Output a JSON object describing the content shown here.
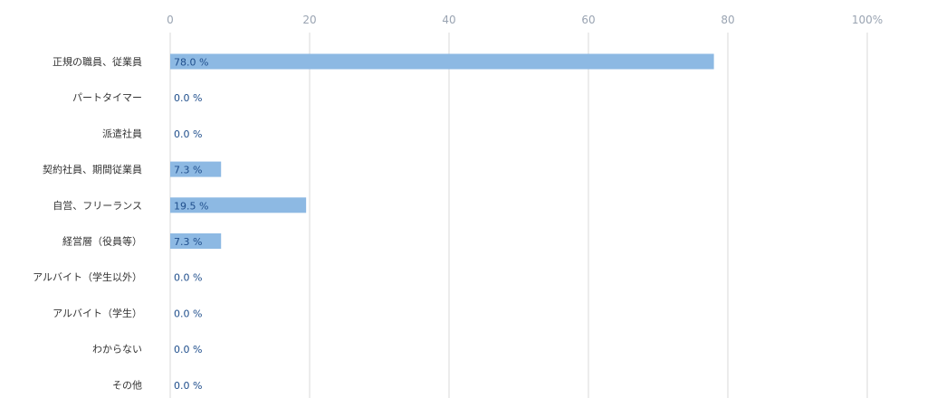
{
  "chart_data": {
    "type": "bar",
    "orientation": "horizontal",
    "categories": [
      "正規の職員、従業員",
      "パートタイマー",
      "派遣社員",
      "契約社員、期間従業員",
      "自営、フリーランス",
      "経営層（役員等）",
      "アルバイト（学生以外）",
      "アルバイト（学生）",
      "わからない",
      "その他"
    ],
    "values": [
      78.0,
      0.0,
      0.0,
      7.3,
      19.5,
      7.3,
      0.0,
      0.0,
      0.0,
      0.0
    ],
    "data_labels": [
      "78.0 %",
      "0.0 %",
      "0.0 %",
      "7.3 %",
      "19.5 %",
      "7.3 %",
      "0.0 %",
      "0.0 %",
      "0.0 %",
      "0.0 %"
    ],
    "x_ticks": [
      "0",
      "20",
      "40",
      "60",
      "80",
      "100%"
    ],
    "xlim": [
      0,
      100
    ],
    "grid": true,
    "axis_position": "top",
    "title": "",
    "xlabel": "",
    "ylabel": "",
    "colors": {
      "bar": "#8db9e3",
      "data_label": "#1f4e8c",
      "grid": "#d9d9d9",
      "tick": "#9aa4b2",
      "category": "#333333"
    }
  }
}
